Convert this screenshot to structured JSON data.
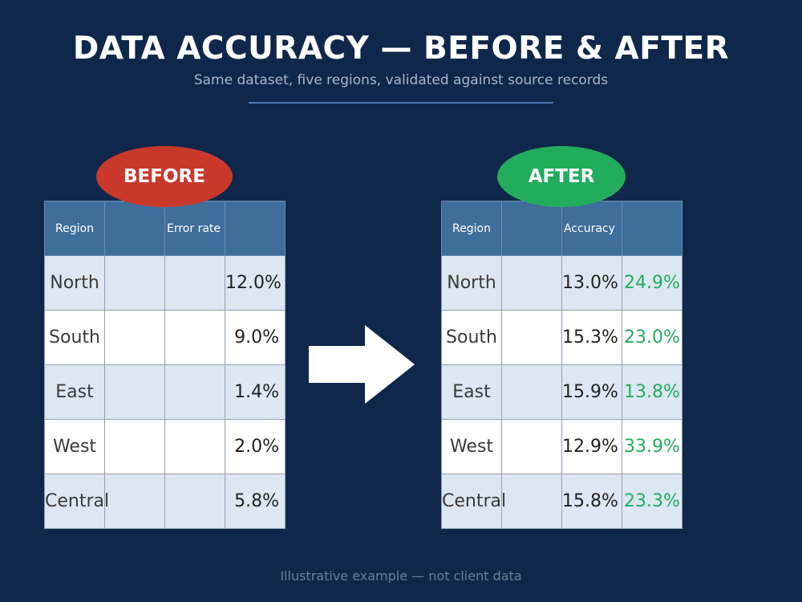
{
  "header": {
    "title": "DATA ACCURACY — BEFORE & AFTER",
    "subtitle": "Same dataset, five regions, validated against source records"
  },
  "before": {
    "badge": "BEFORE",
    "columns": [
      "Region",
      "",
      "Error rate",
      ""
    ],
    "rows": [
      {
        "region": "North",
        "value": "12.0%"
      },
      {
        "region": "South",
        "value": "9.0%"
      },
      {
        "region": "East",
        "value": "1.4%"
      },
      {
        "region": "West",
        "value": "2.0%"
      },
      {
        "region": "Central",
        "value": "5.8%"
      }
    ]
  },
  "after": {
    "badge": "AFTER",
    "columns": [
      "Region",
      "",
      "Accuracy",
      ""
    ],
    "rows": [
      {
        "region": "North",
        "value": "13.0%",
        "change": "24.9%"
      },
      {
        "region": "South",
        "value": "15.3%",
        "change": "23.0%"
      },
      {
        "region": "East",
        "value": "15.9%",
        "change": "13.8%"
      },
      {
        "region": "West",
        "value": "12.9%",
        "change": "33.9%"
      },
      {
        "region": "Central",
        "value": "15.8%",
        "change": "23.3%"
      }
    ]
  },
  "arrow_icon": "right-arrow-icon",
  "footer": "Illustrative example — not client data",
  "colors": {
    "background": "#10274c",
    "before_badge": "#c8392c",
    "after_badge": "#22ad5c",
    "header_cell": "#3f6e9b",
    "shaded_row": "#dce7f2",
    "gain_text": "#22ad5c"
  }
}
